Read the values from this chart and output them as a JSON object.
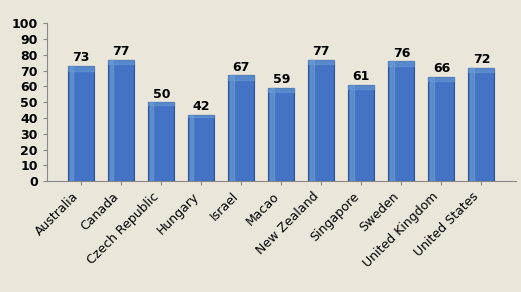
{
  "categories": [
    "Australia",
    "Canada",
    "Czech Republic",
    "Hungary",
    "Israel",
    "Macao",
    "New Zealand",
    "Singapore",
    "Sweden",
    "United Kingdom",
    "United States"
  ],
  "values": [
    73,
    77,
    50,
    42,
    67,
    59,
    77,
    61,
    76,
    66,
    72
  ],
  "bar_color": "#4472C4",
  "bar_color_light": "#6A9DD4",
  "bar_edge_color": "#2F5496",
  "background_color": "#EAE6DA",
  "plot_bg_color": "#EAE6DA",
  "ylim": [
    0,
    100
  ],
  "yticks": [
    0,
    10,
    20,
    30,
    40,
    50,
    60,
    70,
    80,
    90,
    100
  ],
  "label_fontsize": 9,
  "tick_fontsize": 9,
  "bar_width": 0.65,
  "value_label_fontsize": 9,
  "xtick_rotation": 45
}
